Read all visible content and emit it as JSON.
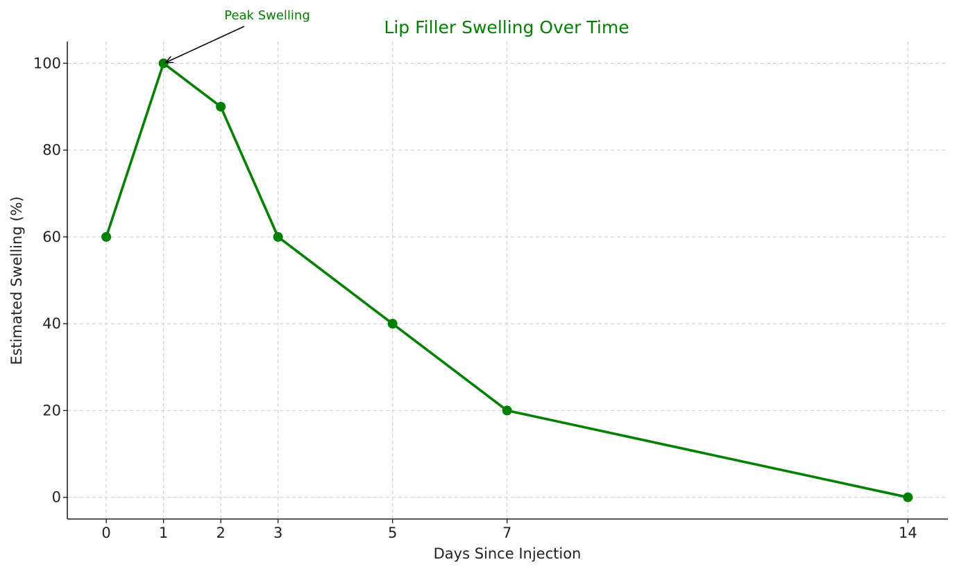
{
  "chart_data": {
    "type": "line",
    "title": "Lip Filler Swelling Over Time",
    "xlabel": "Days Since Injection",
    "ylabel": "Estimated Swelling (%)",
    "x": [
      0,
      1,
      2,
      3,
      5,
      7,
      14
    ],
    "series": [
      {
        "values": [
          60,
          100,
          90,
          60,
          40,
          20,
          0
        ],
        "color": "#008000"
      }
    ],
    "xticks": [
      0,
      1,
      2,
      3,
      5,
      7,
      14
    ],
    "yticks": [
      0,
      20,
      40,
      60,
      80,
      100
    ],
    "xlim": [
      -0.68,
      14.7
    ],
    "ylim": [
      -5,
      105
    ],
    "grid": true,
    "title_color": "#008000",
    "annotations": [
      {
        "text": "Peak Swelling",
        "x": 1,
        "y": 100,
        "color": "#008000"
      }
    ]
  }
}
